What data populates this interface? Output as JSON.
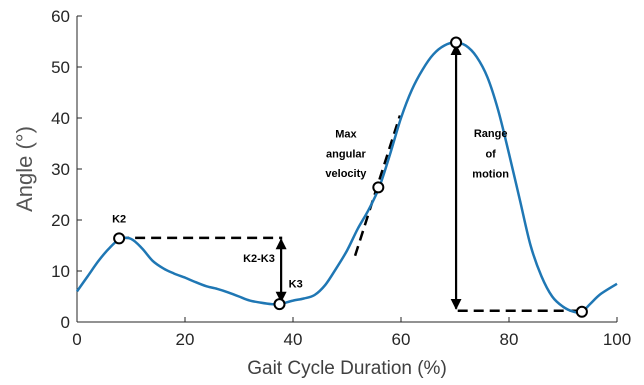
{
  "chart_data": {
    "type": "line",
    "title": "",
    "xlabel": "Gait Cycle Duration (%)",
    "ylabel": "Angle (°)",
    "xlim": [
      0,
      100
    ],
    "ylim": [
      0,
      60
    ],
    "xticks": [
      "0",
      "20",
      "40",
      "60",
      "80",
      "100"
    ],
    "yticks": [
      "0",
      "10",
      "20",
      "30",
      "40",
      "50",
      "60"
    ],
    "grid": false,
    "line_color": "#1f77b4",
    "series": [
      {
        "x": [
          0,
          2,
          4,
          6,
          8,
          10,
          12,
          14,
          16,
          18,
          20,
          22,
          24,
          26,
          28,
          30,
          32,
          34,
          36,
          37,
          38,
          40,
          42,
          44,
          46,
          48,
          50,
          52,
          54,
          56,
          58,
          60,
          62,
          64,
          66,
          68,
          70,
          72,
          74,
          76,
          78,
          80,
          82,
          84,
          86,
          88,
          90,
          92,
          93.5,
          95,
          97,
          100
        ],
        "y": [
          6,
          9,
          12,
          14.5,
          16.3,
          16.3,
          14.5,
          12,
          10.5,
          9.5,
          8.7,
          7.8,
          7,
          6.5,
          5.8,
          5,
          4.2,
          3.8,
          3.5,
          3.5,
          3.6,
          4.2,
          4.6,
          5.3,
          7.3,
          10.5,
          14,
          18.3,
          22,
          26.5,
          33,
          40,
          45.5,
          49.5,
          52.5,
          54.2,
          54.8,
          54.2,
          52,
          48,
          41.5,
          33,
          24,
          15,
          9,
          5,
          3,
          2,
          2,
          3.5,
          5.5,
          7.5
        ]
      }
    ],
    "points": [
      {
        "x": 7.8,
        "y": 16.4
      },
      {
        "x": 37.5,
        "y": 3.5
      },
      {
        "x": 55.8,
        "y": 26.4
      },
      {
        "x": 70.2,
        "y": 54.8
      },
      {
        "x": 93.5,
        "y": 2
      }
    ],
    "dashed_lines": [
      {
        "x": [
          7.8,
          38
        ],
        "y": [
          16.5,
          16.5
        ]
      },
      {
        "x": [
          70.5,
          92.5
        ],
        "y": [
          2.2,
          2.2
        ]
      },
      {
        "x": [
          51.5,
          59.8
        ],
        "y": [
          13,
          40.5
        ]
      }
    ],
    "arrows": [
      {
        "x": 37.8,
        "y": [
          4,
          16.2
        ]
      },
      {
        "x": 70.2,
        "y": [
          2.6,
          54.3
        ]
      }
    ],
    "annotations": [
      {
        "id": "k2",
        "text": "K2",
        "x": 7.8,
        "y": 19.5,
        "align": "middle"
      },
      {
        "id": "k2k3",
        "text": "K2-K3",
        "x": 33.7,
        "y": 11.8,
        "align": "middle"
      },
      {
        "id": "k3",
        "text": "K3",
        "x": 39.2,
        "y": 6.8,
        "align": "start"
      },
      {
        "id": "max1",
        "text": "Max",
        "x": 49.8,
        "y": 36.2,
        "align": "middle"
      },
      {
        "id": "max2",
        "text": "angular",
        "x": 49.8,
        "y": 32.3,
        "align": "middle"
      },
      {
        "id": "max3",
        "text": "velocity",
        "x": 49.8,
        "y": 28.4,
        "align": "middle"
      },
      {
        "id": "rom1",
        "text": "Range",
        "x": 76.6,
        "y": 36.3,
        "align": "middle"
      },
      {
        "id": "rom2",
        "text": "of",
        "x": 76.6,
        "y": 32.3,
        "align": "middle"
      },
      {
        "id": "rom3",
        "text": "motion",
        "x": 76.6,
        "y": 28.3,
        "align": "middle"
      }
    ]
  }
}
